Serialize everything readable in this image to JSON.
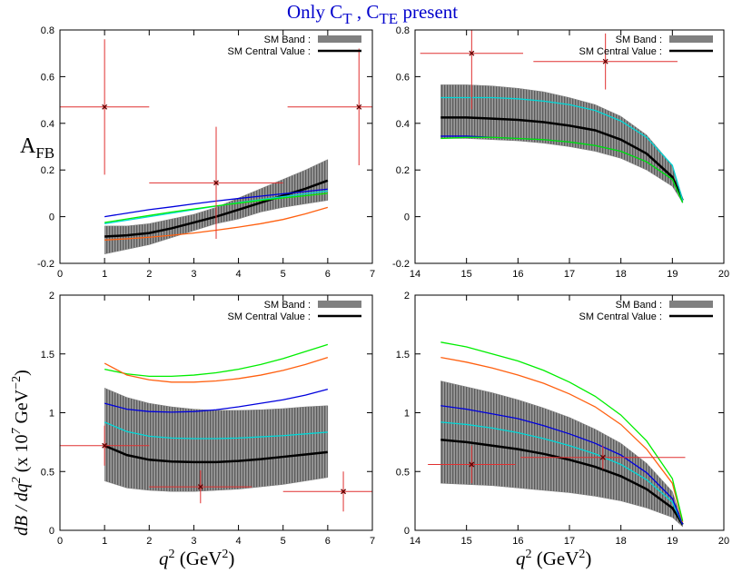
{
  "title": [
    "Only C",
    "T",
    " , C",
    "TE",
    " present"
  ],
  "chart_data": [
    {
      "type": "line",
      "ylabel": [
        "A",
        "FB"
      ],
      "xlim": [
        0,
        7
      ],
      "xticks": [
        0,
        1,
        2,
        3,
        4,
        5,
        6,
        7
      ],
      "ylim": [
        -0.2,
        0.8
      ],
      "yticks": [
        -0.2,
        0,
        0.2,
        0.4,
        0.6,
        0.8
      ],
      "x": [
        1,
        1.5,
        2,
        2.5,
        3,
        3.5,
        4,
        4.5,
        5,
        5.5,
        6
      ],
      "series": [
        {
          "name": "SM Band :",
          "color": "#808080",
          "upper": [
            -0.04,
            -0.04,
            -0.03,
            -0.01,
            0.01,
            0.04,
            0.08,
            0.12,
            0.16,
            0.2,
            0.245
          ],
          "lower": [
            -0.16,
            -0.14,
            -0.12,
            -0.09,
            -0.06,
            -0.03,
            -0.01,
            0.02,
            0.04,
            0.055,
            0.07
          ]
        },
        {
          "name": "SM Central Value :",
          "color": "#000000",
          "values": [
            -0.085,
            -0.08,
            -0.07,
            -0.05,
            -0.025,
            0,
            0.03,
            0.06,
            0.09,
            0.12,
            0.155
          ]
        },
        {
          "color": "#00d8d8",
          "values": [
            -0.03,
            -0.015,
            0,
            0.015,
            0.03,
            0.045,
            0.06,
            0.073,
            0.086,
            0.098,
            0.11
          ]
        },
        {
          "color": "#0000dd",
          "values": [
            0,
            0.015,
            0.03,
            0.042,
            0.055,
            0.067,
            0.078,
            0.088,
            0.098,
            0.108,
            0.118
          ]
        },
        {
          "color": "#00ee00",
          "values": [
            -0.025,
            -0.01,
            0.005,
            0.02,
            0.033,
            0.046,
            0.058,
            0.07,
            0.08,
            0.09,
            0.1
          ]
        },
        {
          "color": "#ff6010",
          "values": [
            -0.1,
            -0.095,
            -0.088,
            -0.08,
            -0.07,
            -0.058,
            -0.045,
            -0.03,
            -0.012,
            0.012,
            0.04
          ]
        }
      ],
      "points": {
        "color": "#e03030",
        "x": [
          1,
          3.5,
          6.7
        ],
        "y": [
          0.47,
          0.145,
          0.47
        ],
        "xerr": [
          1,
          1.5,
          1.6
        ],
        "yerr": [
          0.29,
          0.24,
          0.25
        ]
      }
    },
    {
      "type": "line",
      "xlim": [
        14,
        20
      ],
      "xticks": [
        14,
        15,
        16,
        17,
        18,
        19,
        20
      ],
      "ylim": [
        -0.2,
        0.8
      ],
      "yticks": [
        -0.2,
        0,
        0.2,
        0.4,
        0.6,
        0.8
      ],
      "x": [
        14.5,
        15,
        15.5,
        16,
        16.5,
        17,
        17.5,
        18,
        18.5,
        19,
        19.2
      ],
      "series": [
        {
          "name": "SM Band :",
          "color": "#808080",
          "upper": [
            0.565,
            0.565,
            0.56,
            0.55,
            0.535,
            0.51,
            0.48,
            0.43,
            0.35,
            0.22,
            0.08
          ],
          "lower": [
            0.335,
            0.335,
            0.33,
            0.325,
            0.315,
            0.3,
            0.28,
            0.25,
            0.2,
            0.13,
            0.06
          ]
        },
        {
          "name": "SM Central Value :",
          "color": "#000000",
          "values": [
            0.425,
            0.425,
            0.42,
            0.415,
            0.405,
            0.39,
            0.37,
            0.33,
            0.27,
            0.17,
            0.07
          ]
        },
        {
          "color": "#00d8d8",
          "values": [
            0.51,
            0.51,
            0.51,
            0.505,
            0.495,
            0.48,
            0.455,
            0.41,
            0.34,
            0.22,
            0.07
          ]
        },
        {
          "color": "#0000dd",
          "values": [
            0.345,
            0.345,
            0.34,
            0.335,
            0.33,
            0.32,
            0.305,
            0.28,
            0.235,
            0.16,
            0.06
          ]
        },
        {
          "color": "#00ee00",
          "values": [
            0.335,
            0.34,
            0.34,
            0.335,
            0.33,
            0.32,
            0.305,
            0.28,
            0.235,
            0.16,
            0.06
          ]
        }
      ],
      "points": {
        "color": "#e03030",
        "x": [
          15.1,
          17.7
        ],
        "y": [
          0.7,
          0.665
        ],
        "xerr": [
          1,
          1.4
        ],
        "yerr": [
          0.24,
          0.12
        ]
      }
    },
    {
      "type": "line",
      "ylabel": [
        "dB / dq",
        "2",
        "  (x 10",
        "7",
        " GeV",
        "−2",
        ")"
      ],
      "xlabel": [
        "q",
        "2",
        " (GeV",
        "2",
        ")"
      ],
      "xlim": [
        0,
        7
      ],
      "xticks": [
        0,
        1,
        2,
        3,
        4,
        5,
        6,
        7
      ],
      "ylim": [
        0,
        2
      ],
      "yticks": [
        0,
        0.5,
        1,
        1.5,
        2
      ],
      "x": [
        1,
        1.5,
        2,
        2.5,
        3,
        3.5,
        4,
        4.5,
        5,
        5.5,
        6
      ],
      "series": [
        {
          "name": "SM Band :",
          "color": "#808080",
          "upper": [
            1.21,
            1.13,
            1.08,
            1.05,
            1.03,
            1.02,
            1.02,
            1.025,
            1.035,
            1.05,
            1.06
          ],
          "lower": [
            0.42,
            0.36,
            0.34,
            0.33,
            0.33,
            0.34,
            0.35,
            0.37,
            0.39,
            0.42,
            0.45
          ]
        },
        {
          "name": "SM Central Value :",
          "color": "#000000",
          "values": [
            0.72,
            0.64,
            0.6,
            0.585,
            0.58,
            0.58,
            0.59,
            0.605,
            0.625,
            0.645,
            0.665
          ]
        },
        {
          "color": "#00d8d8",
          "values": [
            0.92,
            0.84,
            0.8,
            0.785,
            0.78,
            0.78,
            0.785,
            0.795,
            0.805,
            0.82,
            0.835
          ]
        },
        {
          "color": "#0000dd",
          "values": [
            1.08,
            1.03,
            1.01,
            1.005,
            1.01,
            1.025,
            1.05,
            1.08,
            1.11,
            1.15,
            1.2
          ]
        },
        {
          "color": "#00ee00",
          "values": [
            1.37,
            1.33,
            1.31,
            1.31,
            1.32,
            1.34,
            1.37,
            1.41,
            1.46,
            1.52,
            1.58
          ]
        },
        {
          "color": "#ff6010",
          "values": [
            1.42,
            1.32,
            1.28,
            1.26,
            1.26,
            1.27,
            1.29,
            1.32,
            1.36,
            1.41,
            1.47
          ]
        }
      ],
      "points": {
        "color": "#e03030",
        "x": [
          1,
          3.15,
          6.35
        ],
        "y": [
          0.72,
          0.37,
          0.33
        ],
        "xerr": [
          1,
          1.15,
          1.35
        ],
        "yerr": [
          0.17,
          0.14,
          0.17
        ]
      }
    },
    {
      "type": "line",
      "xlabel": [
        "q",
        "2",
        " (GeV",
        "2",
        ")"
      ],
      "xlim": [
        14,
        20
      ],
      "xticks": [
        14,
        15,
        16,
        17,
        18,
        19,
        20
      ],
      "ylim": [
        0,
        2
      ],
      "yticks": [
        0,
        0.5,
        1,
        1.5,
        2
      ],
      "x": [
        14.5,
        15,
        15.5,
        16,
        16.5,
        17,
        17.5,
        18,
        18.5,
        19,
        19.2
      ],
      "series": [
        {
          "name": "SM Band :",
          "color": "#808080",
          "upper": [
            1.27,
            1.22,
            1.17,
            1.11,
            1.04,
            0.96,
            0.86,
            0.74,
            0.57,
            0.33,
            0.06
          ],
          "lower": [
            0.4,
            0.39,
            0.38,
            0.36,
            0.34,
            0.32,
            0.29,
            0.25,
            0.19,
            0.11,
            0.03
          ]
        },
        {
          "name": "SM Central Value :",
          "color": "#000000",
          "values": [
            0.77,
            0.75,
            0.72,
            0.69,
            0.65,
            0.6,
            0.54,
            0.46,
            0.35,
            0.19,
            0.05
          ]
        },
        {
          "color": "#00d8d8",
          "values": [
            0.92,
            0.9,
            0.87,
            0.83,
            0.78,
            0.72,
            0.65,
            0.56,
            0.43,
            0.24,
            0.05
          ]
        },
        {
          "color": "#0000dd",
          "values": [
            1.06,
            1.03,
            0.99,
            0.95,
            0.89,
            0.82,
            0.74,
            0.64,
            0.49,
            0.27,
            0.05
          ]
        },
        {
          "color": "#ff6010",
          "values": [
            1.47,
            1.43,
            1.38,
            1.32,
            1.25,
            1.16,
            1.05,
            0.9,
            0.69,
            0.4,
            0.07
          ]
        },
        {
          "color": "#00ee00",
          "values": [
            1.6,
            1.56,
            1.5,
            1.44,
            1.36,
            1.26,
            1.14,
            0.98,
            0.76,
            0.44,
            0.08
          ]
        }
      ],
      "points": {
        "color": "#e03030",
        "x": [
          15.1,
          17.65
        ],
        "y": [
          0.56,
          0.62
        ],
        "xerr": [
          0.85,
          1.6
        ],
        "yerr": [
          0.16,
          0.1
        ]
      }
    }
  ]
}
